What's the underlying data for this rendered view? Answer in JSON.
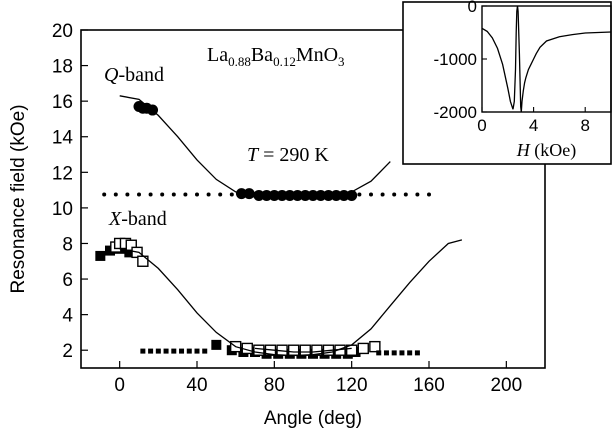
{
  "chart_data": [
    {
      "type": "scatter",
      "xlabel": "Angle  (deg)",
      "ylabel": "Resonance field  (kOe)",
      "xlim": [
        -20,
        220
      ],
      "ylim": [
        1,
        20
      ],
      "xticks": [
        0,
        40,
        80,
        120,
        160,
        200
      ],
      "yticks": [
        2,
        4,
        6,
        8,
        10,
        12,
        14,
        16,
        18,
        20
      ],
      "grid": false,
      "annotations": {
        "compound": [
          "La",
          "0.88",
          "Ba",
          "0.12",
          "MnO",
          "3"
        ],
        "temperature": [
          "T",
          " = 290 K"
        ],
        "q_band": [
          "Q",
          "-band"
        ],
        "x_band": [
          "X",
          "-band"
        ]
      },
      "series": [
        {
          "marker": "filled-circle",
          "x": [
            10,
            12,
            14,
            17,
            63,
            67,
            72,
            76,
            80,
            84,
            88,
            92,
            96,
            100,
            104,
            108,
            112,
            116,
            120
          ],
          "y": [
            15.7,
            15.6,
            15.6,
            15.5,
            10.8,
            10.8,
            10.7,
            10.7,
            10.7,
            10.7,
            10.7,
            10.7,
            10.7,
            10.7,
            10.7,
            10.7,
            10.7,
            10.7,
            10.7
          ]
        },
        {
          "marker": "small-filled-dot",
          "x": [
            -8,
            -2,
            4,
            10,
            16,
            22,
            28,
            34,
            40,
            46,
            52,
            58,
            64,
            70,
            76,
            82,
            88,
            94,
            100,
            106,
            112,
            118,
            124,
            130,
            136,
            142,
            148,
            154,
            160
          ],
          "y": [
            10.75,
            10.75,
            10.75,
            10.75,
            10.75,
            10.75,
            10.75,
            10.75,
            10.75,
            10.75,
            10.75,
            10.75,
            10.75,
            10.75,
            10.75,
            10.75,
            10.75,
            10.75,
            10.75,
            10.75,
            10.75,
            10.75,
            10.75,
            10.75,
            10.75,
            10.75,
            10.75,
            10.75,
            10.75
          ]
        },
        {
          "marker": "filled-square",
          "x": [
            -10,
            -5,
            0,
            5,
            50,
            58,
            64,
            70,
            76,
            82,
            88,
            94,
            100,
            106,
            112,
            118,
            122
          ],
          "y": [
            7.3,
            7.6,
            7.7,
            7.5,
            2.3,
            2.0,
            1.9,
            1.9,
            1.8,
            1.8,
            1.8,
            1.8,
            1.8,
            1.8,
            1.8,
            1.8,
            1.9
          ]
        },
        {
          "marker": "open-square",
          "x": [
            -2,
            0,
            3,
            6,
            9,
            12,
            60,
            66,
            72,
            78,
            84,
            90,
            96,
            102,
            108,
            114,
            120,
            126,
            132
          ],
          "y": [
            7.8,
            8.0,
            8.0,
            7.9,
            7.5,
            7.0,
            2.2,
            2.1,
            2.0,
            2.0,
            2.0,
            2.0,
            2.0,
            2.0,
            2.0,
            2.0,
            2.0,
            2.1,
            2.2
          ]
        },
        {
          "marker": "small-filled-square",
          "x": [
            12,
            16,
            20,
            24,
            28,
            32,
            36,
            40,
            44,
            134,
            138,
            142,
            146,
            150,
            154
          ],
          "y": [
            1.95,
            1.95,
            1.95,
            1.95,
            1.95,
            1.95,
            1.95,
            1.95,
            1.95,
            1.85,
            1.85,
            1.85,
            1.85,
            1.85,
            1.85
          ]
        },
        {
          "type": "line",
          "x": [
            0,
            10,
            20,
            30,
            40,
            50,
            60,
            70,
            80,
            90,
            100,
            110,
            120,
            130,
            140
          ],
          "y": [
            16.3,
            16.1,
            15.2,
            14.0,
            12.7,
            11.6,
            10.9,
            10.6,
            10.55,
            10.55,
            10.6,
            10.7,
            10.9,
            11.5,
            12.6
          ]
        },
        {
          "type": "line",
          "x": [
            0,
            10,
            20,
            30,
            40,
            50,
            60,
            70,
            80,
            90,
            100,
            110,
            120,
            130,
            140,
            150,
            160,
            170,
            177
          ],
          "y": [
            7.7,
            7.5,
            6.6,
            5.4,
            4.1,
            3.0,
            2.2,
            1.9,
            1.75,
            1.7,
            1.75,
            1.9,
            2.3,
            3.2,
            4.5,
            5.8,
            7.0,
            8.0,
            8.2
          ]
        },
        {
          "type": "line",
          "x": [
            70,
            80,
            90,
            100,
            110,
            120
          ],
          "y": [
            2.1,
            2.0,
            1.9,
            1.9,
            2.0,
            2.1
          ]
        }
      ]
    },
    {
      "type": "line",
      "inset": true,
      "xlabel": [
        "H",
        "  (kOe)"
      ],
      "ylabel": "",
      "xlim": [
        0,
        10
      ],
      "ylim": [
        -2000,
        0
      ],
      "xticks": [
        0,
        4,
        8
      ],
      "yticks": [
        0,
        -1000,
        -2000
      ],
      "series": [
        {
          "x": [
            0,
            0.4,
            0.8,
            1.2,
            1.6,
            2.0,
            2.2,
            2.4,
            2.5,
            2.6,
            2.65,
            2.7,
            2.75,
            2.8,
            2.9,
            3.0,
            3.05,
            3.1,
            3.2,
            3.3,
            3.4,
            3.6,
            3.8,
            4.0,
            4.2,
            4.5,
            5.0,
            6.0,
            7.0,
            8.0,
            9.0,
            10.0
          ],
          "y": [
            -420,
            -480,
            -600,
            -800,
            -1100,
            -1550,
            -1800,
            -1950,
            -1800,
            -1200,
            -500,
            -100,
            0,
            -100,
            -900,
            -1900,
            -2000,
            -1800,
            -1600,
            -1450,
            -1350,
            -1200,
            -1100,
            -1000,
            -900,
            -780,
            -660,
            -580,
            -540,
            -510,
            -500,
            -490
          ]
        }
      ]
    }
  ]
}
